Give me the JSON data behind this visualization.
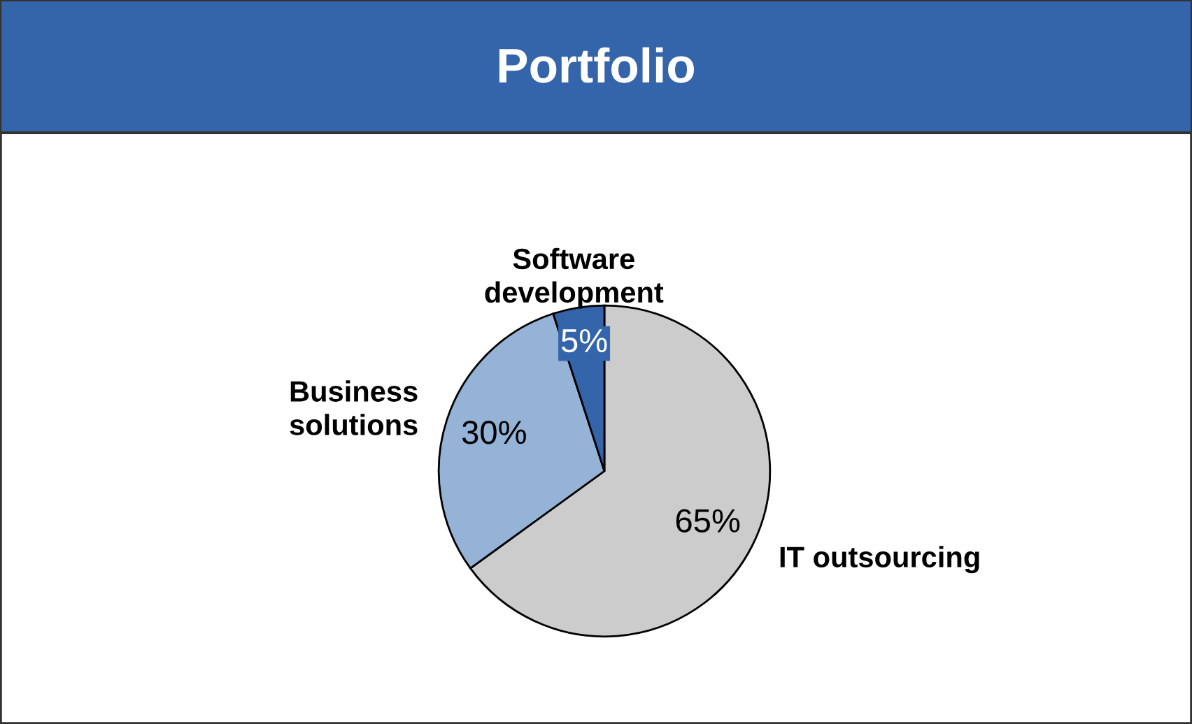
{
  "chart_data": {
    "type": "pie",
    "title": "Portfolio",
    "categories": [
      "IT outsourcing",
      "Business\nsolutions",
      "Software\ndevelopment"
    ],
    "values": [
      65,
      30,
      5
    ],
    "colors": [
      "#cccccc",
      "#95b3d7",
      "#3465aa"
    ],
    "value_labels": [
      "65%",
      "30%",
      "5%"
    ],
    "legend": false
  }
}
